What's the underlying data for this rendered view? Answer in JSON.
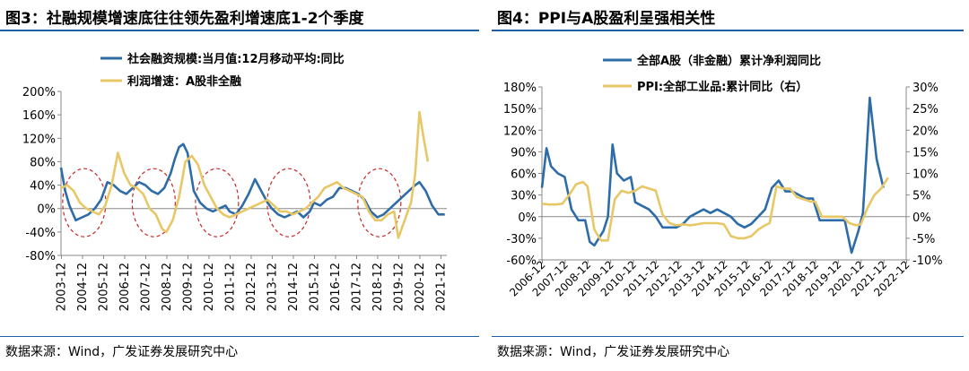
{
  "chart_data": [
    {
      "type": "line",
      "title": "图3：社融规模增速底往往领先盈利增速底1-2个季度",
      "source": "数据来源：Wind，广发证券发展研究中心",
      "x_ticks": [
        "2003-12",
        "2004-12",
        "2005-12",
        "2006-12",
        "2007-12",
        "2008-12",
        "2009-12",
        "2010-12",
        "2011-12",
        "2012-12",
        "2013-12",
        "2014-12",
        "2015-12",
        "2016-12",
        "2017-12",
        "2018-12",
        "2019-12",
        "2020-12",
        "2021-12"
      ],
      "y_ticks": [
        "200%",
        "160%",
        "120%",
        "80%",
        "40%",
        "0%",
        "-40%",
        "-80%"
      ],
      "ylim": [
        -80,
        200
      ],
      "xlim": [
        2003.9,
        2022.2
      ],
      "legend": [
        "社会融资规模:当月值:12月移动平均:同比",
        "利润增速：A股非全融"
      ],
      "colors": [
        "#2e6ca8",
        "#e8c766"
      ],
      "highlight_ellipses_center_years": [
        2005.0,
        2008.3,
        2011.3,
        2014.7,
        2019.0
      ],
      "series": [
        {
          "name": "社会融资规模:当月值:12月移动平均:同比",
          "x": [
            2003.9,
            2004.1,
            2004.3,
            2004.6,
            2004.9,
            2005.2,
            2005.5,
            2005.8,
            2006.1,
            2006.4,
            2006.7,
            2007.0,
            2007.3,
            2007.6,
            2007.9,
            2008.2,
            2008.5,
            2008.8,
            2009.1,
            2009.3,
            2009.5,
            2009.7,
            2009.9,
            2010.2,
            2010.5,
            2010.8,
            2011.1,
            2011.4,
            2011.7,
            2011.9,
            2012.2,
            2012.5,
            2012.8,
            2013.1,
            2013.4,
            2013.7,
            2013.9,
            2014.2,
            2014.5,
            2014.8,
            2015.1,
            2015.4,
            2015.7,
            2015.9,
            2016.2,
            2016.5,
            2016.8,
            2017.1,
            2017.4,
            2017.7,
            2018.0,
            2018.3,
            2018.6,
            2018.9,
            2019.2,
            2019.5,
            2019.8,
            2020.1,
            2020.4,
            2020.7,
            2020.9,
            2021.2,
            2021.5,
            2021.8,
            2022.1
          ],
          "y": [
            70,
            30,
            5,
            -20,
            -15,
            -10,
            0,
            15,
            45,
            40,
            30,
            25,
            35,
            45,
            40,
            30,
            25,
            35,
            60,
            85,
            105,
            110,
            95,
            30,
            10,
            0,
            -5,
            0,
            5,
            -5,
            -10,
            5,
            25,
            50,
            30,
            10,
            0,
            -10,
            -15,
            -10,
            -5,
            -15,
            -5,
            10,
            5,
            15,
            20,
            35,
            35,
            30,
            25,
            15,
            -5,
            -15,
            -10,
            0,
            10,
            20,
            30,
            40,
            45,
            30,
            5,
            -10,
            -10
          ]
        },
        {
          "name": "利润增速：A股非全融",
          "x": [
            2003.9,
            2004.2,
            2004.5,
            2004.8,
            2005.1,
            2005.4,
            2005.7,
            2006.0,
            2006.3,
            2006.6,
            2006.9,
            2007.2,
            2007.5,
            2007.8,
            2008.1,
            2008.4,
            2008.7,
            2008.9,
            2009.2,
            2009.5,
            2009.8,
            2010.1,
            2010.4,
            2010.7,
            2011.0,
            2011.3,
            2011.6,
            2011.9,
            2012.2,
            2012.5,
            2012.8,
            2013.1,
            2013.4,
            2013.7,
            2014.0,
            2014.3,
            2014.6,
            2014.9,
            2015.2,
            2015.5,
            2015.8,
            2016.1,
            2016.4,
            2016.7,
            2017.0,
            2017.3,
            2017.6,
            2017.9,
            2018.2,
            2018.5,
            2018.8,
            2019.1,
            2019.4,
            2019.7,
            2019.9,
            2020.2,
            2020.5,
            2020.7,
            2020.9,
            2021.1,
            2021.3
          ],
          "y": [
            35,
            40,
            30,
            10,
            0,
            -5,
            -10,
            5,
            40,
            95,
            60,
            40,
            35,
            25,
            0,
            -10,
            -35,
            -40,
            -20,
            20,
            80,
            90,
            75,
            40,
            20,
            0,
            -10,
            -15,
            -10,
            -5,
            0,
            5,
            10,
            15,
            5,
            -5,
            -5,
            -10,
            -5,
            0,
            10,
            20,
            35,
            40,
            45,
            35,
            30,
            25,
            20,
            -5,
            -20,
            -20,
            -10,
            -5,
            -50,
            -20,
            10,
            60,
            165,
            120,
            80
          ]
        }
      ]
    },
    {
      "type": "line",
      "title": "图4：PPI与A股盈利呈强相关性",
      "source": "数据来源：Wind，广发证券发展研究中心",
      "x_ticks": [
        "2006-12",
        "2007-12",
        "2008-12",
        "2009-12",
        "2010-12",
        "2011-12",
        "2012-12",
        "2013-12",
        "2014-12",
        "2015-12",
        "2016-12",
        "2017-12",
        "2018-12",
        "2019-12",
        "2020-12",
        "2021-12",
        "2022-12"
      ],
      "y_ticks_left": [
        "180%",
        "150%",
        "120%",
        "90%",
        "60%",
        "30%",
        "0%",
        "-30%",
        "-60%"
      ],
      "y_ticks_right": [
        "30%",
        "25%",
        "20%",
        "15%",
        "10%",
        "5%",
        "0%",
        "-5%",
        "-10%"
      ],
      "ylim_left": [
        -60,
        180
      ],
      "ylim_right": [
        -10,
        30
      ],
      "xlim": [
        2006.9,
        2022.9
      ],
      "legend": [
        "全部A股（非金融）累计净利润同比",
        "PPI:全部工业品:累计同比（右）"
      ],
      "colors": [
        "#2e6ca8",
        "#e8c766"
      ],
      "series": [
        {
          "name": "全部A股（非金融）累计净利润同比",
          "axis": "left",
          "x": [
            2006.9,
            2007.1,
            2007.3,
            2007.6,
            2007.9,
            2008.2,
            2008.5,
            2008.8,
            2009.0,
            2009.2,
            2009.4,
            2009.6,
            2009.8,
            2010.0,
            2010.2,
            2010.5,
            2010.8,
            2011.0,
            2011.3,
            2011.6,
            2011.9,
            2012.2,
            2012.5,
            2012.8,
            2013.1,
            2013.4,
            2013.7,
            2014.0,
            2014.3,
            2014.6,
            2014.9,
            2015.2,
            2015.5,
            2015.8,
            2016.1,
            2016.4,
            2016.7,
            2017.0,
            2017.3,
            2017.6,
            2017.9,
            2018.2,
            2018.5,
            2018.8,
            2019.1,
            2019.4,
            2019.7,
            2019.9,
            2020.2,
            2020.5,
            2020.8,
            2021.0,
            2021.3,
            2021.6,
            2021.9
          ],
          "y": [
            40,
            95,
            70,
            60,
            55,
            10,
            -5,
            -5,
            -35,
            -40,
            -30,
            -20,
            0,
            100,
            60,
            50,
            55,
            20,
            15,
            10,
            0,
            -15,
            -15,
            -15,
            -10,
            0,
            5,
            10,
            5,
            10,
            5,
            0,
            -10,
            -15,
            -10,
            0,
            10,
            40,
            50,
            35,
            35,
            30,
            25,
            25,
            -5,
            -5,
            -5,
            -5,
            -5,
            -50,
            -20,
            5,
            165,
            80,
            40
          ]
        },
        {
          "name": "PPI:全部工业品:累计同比（右）",
          "axis": "right",
          "x": [
            2006.9,
            2007.2,
            2007.5,
            2007.8,
            2008.1,
            2008.4,
            2008.7,
            2008.9,
            2009.2,
            2009.5,
            2009.8,
            2010.1,
            2010.4,
            2010.7,
            2011.0,
            2011.3,
            2011.6,
            2011.9,
            2012.2,
            2012.5,
            2012.8,
            2013.1,
            2013.4,
            2013.7,
            2014.0,
            2014.3,
            2014.6,
            2014.9,
            2015.2,
            2015.5,
            2015.8,
            2016.1,
            2016.4,
            2016.7,
            2016.9,
            2017.2,
            2017.5,
            2017.8,
            2018.1,
            2018.4,
            2018.7,
            2018.9,
            2019.2,
            2019.5,
            2019.8,
            2020.1,
            2020.4,
            2020.7,
            2020.9,
            2021.2,
            2021.5,
            2021.8,
            2022.1
          ],
          "y": [
            3,
            2.8,
            2.8,
            3,
            5,
            7.5,
            8,
            7,
            -3,
            -5.5,
            -5.5,
            4,
            6,
            5.5,
            6,
            7,
            6.5,
            6,
            0.5,
            -1.5,
            -2,
            -1.8,
            -2,
            -1.8,
            -1.5,
            -1.5,
            -1.5,
            -1.8,
            -4.5,
            -5,
            -5,
            -4.5,
            -3,
            -2,
            -1.5,
            7,
            6.5,
            6.5,
            4.5,
            4,
            3.5,
            3.5,
            0,
            0,
            0,
            0,
            -1.5,
            -2,
            -1.8,
            2,
            5,
            6.5,
            9
          ]
        }
      ]
    }
  ]
}
